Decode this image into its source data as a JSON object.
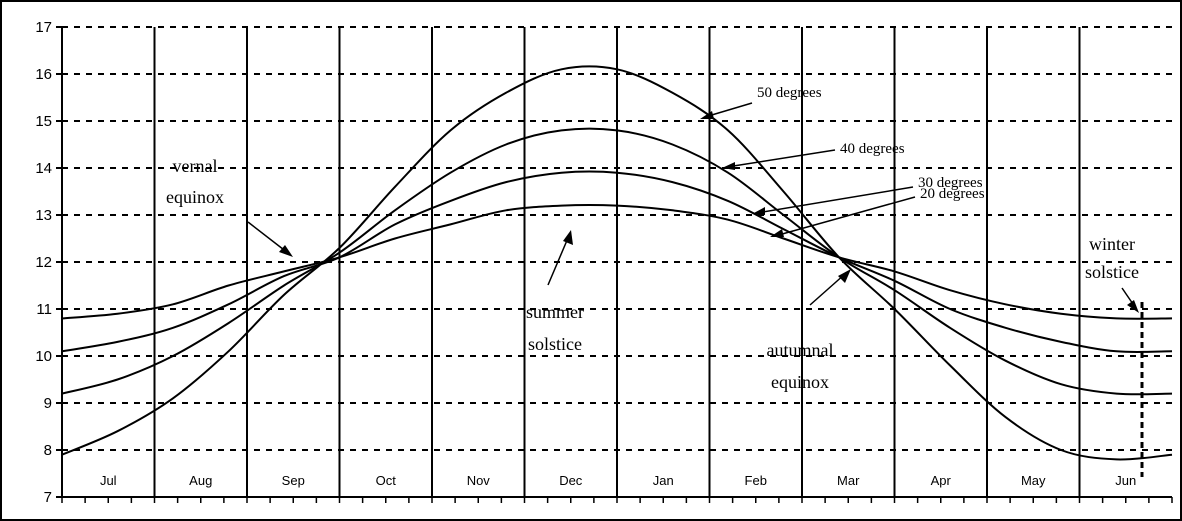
{
  "chart_data": {
    "type": "line",
    "title": "",
    "xlabel": "",
    "ylabel": "",
    "ylim": [
      7,
      17
    ],
    "yticks": [
      7,
      8,
      9,
      10,
      11,
      12,
      13,
      14,
      15,
      16,
      17
    ],
    "grid": true,
    "legend": "none",
    "categories": [
      "Jul",
      "Aug",
      "Sep",
      "Oct",
      "Nov",
      "Dec",
      "Jan",
      "Feb",
      "Mar",
      "Apr",
      "May",
      "Jun"
    ],
    "series": [
      {
        "name": "50 degrees",
        "min": 7.8,
        "max": 16.2,
        "samples": [
          7.9,
          8.4,
          9.1,
          10.1,
          11.3,
          12.3,
          13.6,
          14.8,
          15.6,
          16.1,
          16.1,
          15.6,
          14.8,
          13.5,
          12.1,
          11.0,
          9.8,
          8.7,
          8.0,
          7.8,
          7.9
        ]
      },
      {
        "name": "40 degrees",
        "min": 9.2,
        "max": 14.9,
        "samples": [
          9.2,
          9.5,
          10.0,
          10.7,
          11.5,
          12.2,
          13.1,
          13.9,
          14.5,
          14.8,
          14.8,
          14.5,
          13.9,
          13.0,
          12.1,
          11.4,
          10.6,
          9.9,
          9.4,
          9.2,
          9.2
        ]
      },
      {
        "name": "30 degrees",
        "min": 10.1,
        "max": 14.0,
        "samples": [
          10.1,
          10.3,
          10.6,
          11.1,
          11.7,
          12.1,
          12.8,
          13.3,
          13.7,
          13.9,
          13.9,
          13.7,
          13.3,
          12.7,
          12.1,
          11.6,
          11.0,
          10.6,
          10.3,
          10.1,
          10.1
        ]
      },
      {
        "name": "20 degrees",
        "min": 10.8,
        "max": 13.2,
        "samples": [
          10.8,
          10.9,
          11.1,
          11.5,
          11.8,
          12.1,
          12.5,
          12.8,
          13.1,
          13.2,
          13.2,
          13.1,
          12.9,
          12.5,
          12.1,
          11.8,
          11.4,
          11.1,
          10.9,
          10.8,
          10.8
        ]
      }
    ],
    "annotations": {
      "vernal_line1": "vernal",
      "vernal_line2": "equinox",
      "summer_line1": "summer",
      "summer_line2": "solstice",
      "autumnal_line1": "autumnal",
      "autumnal_line2": "equinox",
      "winter_line1": "winter",
      "winter_line2": "solstice",
      "label_50": "50 degrees",
      "label_40": "40 degrees",
      "label_30": "30 degrees",
      "label_20": "20 degrees"
    }
  }
}
